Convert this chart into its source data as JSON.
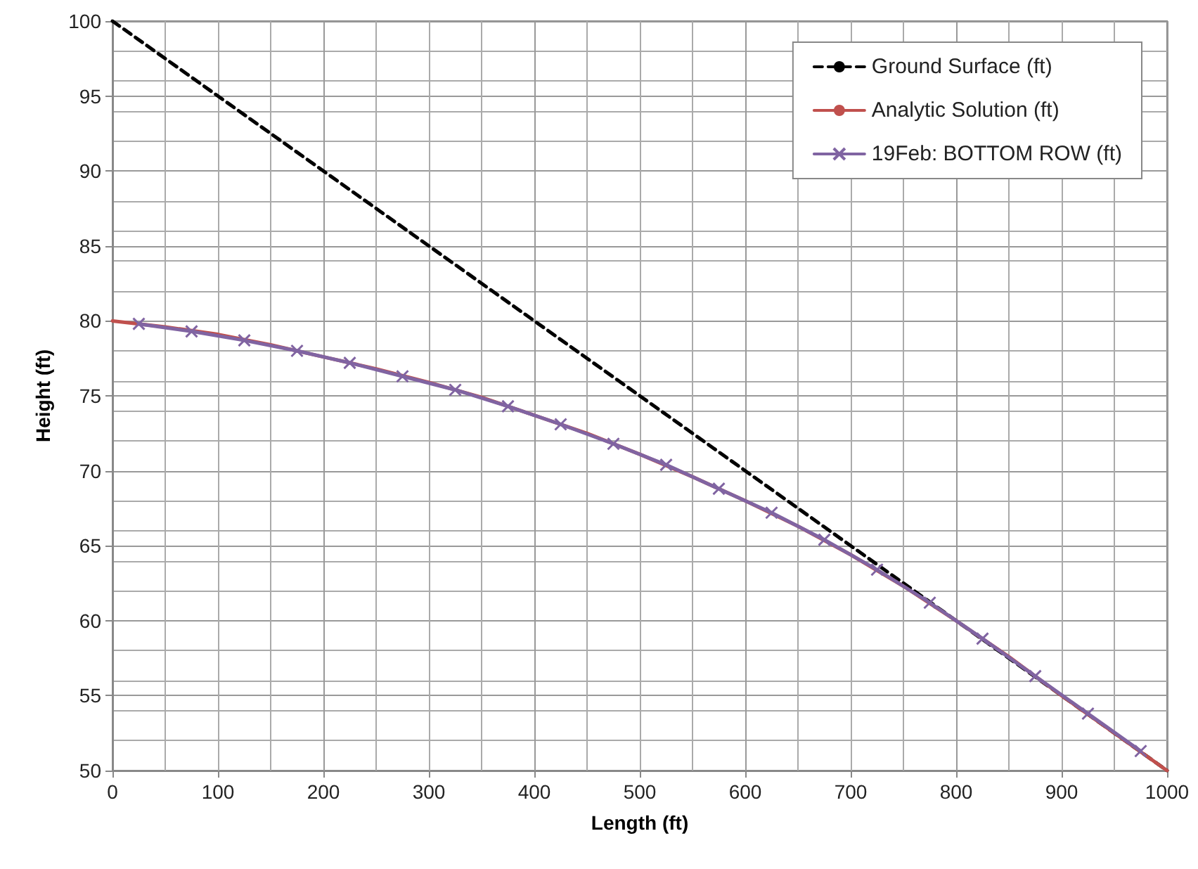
{
  "chart_data": {
    "type": "line",
    "xlabel": "Length (ft)",
    "ylabel": "Height (ft)",
    "xlim": [
      0,
      1000
    ],
    "xticks": [
      0,
      100,
      200,
      300,
      400,
      500,
      600,
      700,
      800,
      900,
      1000
    ],
    "ylim": [
      50,
      100
    ],
    "yticks": [
      50,
      55,
      60,
      65,
      70,
      75,
      80,
      85,
      90,
      95,
      100
    ],
    "grid": true,
    "legend": "top right",
    "series": [
      {
        "name": "Ground Surface (ft)",
        "color": "#000000",
        "line_style": "dashed",
        "marker": "none",
        "x": [
          0,
          1000
        ],
        "values": [
          100,
          50
        ]
      },
      {
        "name": "Analytic Solution (ft)",
        "color": "#c0504d",
        "line_style": "solid",
        "marker": "none",
        "x": [
          0,
          50,
          100,
          150,
          200,
          250,
          300,
          350,
          400,
          450,
          500,
          550,
          600,
          650,
          700,
          750,
          800,
          850,
          900,
          950,
          1000
        ],
        "values": [
          80,
          79.6,
          79.1,
          78.4,
          77.6,
          76.8,
          75.9,
          74.9,
          73.7,
          72.5,
          71.1,
          69.6,
          68.0,
          66.3,
          64.4,
          62.3,
          60.0,
          57.6,
          55.0,
          52.5,
          50
        ]
      },
      {
        "name": "19Feb: BOTTOM ROW (ft)",
        "color": "#8064a2",
        "line_style": "solid",
        "marker": "cross",
        "x": [
          25,
          75,
          125,
          175,
          225,
          275,
          325,
          375,
          425,
          475,
          525,
          575,
          625,
          675,
          725,
          775,
          825,
          875,
          925,
          975
        ],
        "values": [
          79.8,
          79.3,
          78.7,
          78.0,
          77.2,
          76.3,
          75.4,
          74.3,
          73.1,
          71.8,
          70.4,
          68.8,
          67.2,
          65.4,
          63.4,
          61.2,
          58.8,
          56.3,
          53.8,
          51.3
        ]
      }
    ]
  }
}
